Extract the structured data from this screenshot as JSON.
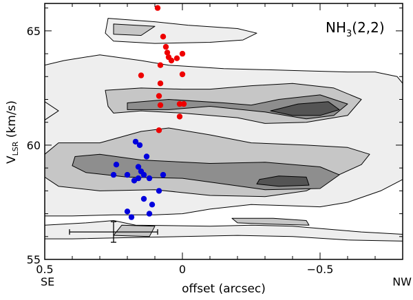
{
  "chart_data": {
    "type": "scatter",
    "title": "",
    "annotation": {
      "main": "NH",
      "sub": "3",
      "tail": "(2,2)"
    },
    "xlabel": "offset (arcsec)",
    "ylabel": {
      "main": "V",
      "sub": "LSR",
      "tail": " (km/s)"
    },
    "x_direction_labels": {
      "left": "SE",
      "right": "NW"
    },
    "xlim": [
      0.5,
      -0.8
    ],
    "ylim": [
      55,
      66.2
    ],
    "x_ticks": [
      0.5,
      0,
      -0.5
    ],
    "x_tick_labels": [
      "0.5",
      "0",
      "−0.5"
    ],
    "y_ticks": [
      55,
      60,
      65
    ],
    "y_tick_labels": [
      "55",
      "60",
      "65"
    ],
    "grid": false,
    "colors": {
      "red_series": "#ee0000",
      "blue_series": "#0000dd",
      "contour_levels": [
        "#eeeeee",
        "#c6c6c6",
        "#8e8e8e",
        "#545454"
      ],
      "contour_line": "#000000"
    },
    "series": [
      {
        "points": [
          [
            0.09,
            66.0
          ],
          [
            0.07,
            64.75
          ],
          [
            0.06,
            64.3
          ],
          [
            0.055,
            64.05
          ],
          [
            0.05,
            63.85
          ],
          [
            0.0,
            64.0
          ],
          [
            0.04,
            63.7
          ],
          [
            0.02,
            63.8
          ],
          [
            0.08,
            63.5
          ],
          [
            0.0,
            63.1
          ],
          [
            0.15,
            63.05
          ],
          [
            0.08,
            62.7
          ],
          [
            0.085,
            62.15
          ],
          [
            0.01,
            61.8
          ],
          [
            -0.005,
            61.8
          ],
          [
            0.08,
            61.75
          ],
          [
            0.01,
            61.25
          ],
          [
            0.085,
            60.65
          ]
        ]
      },
      {
        "points": [
          [
            0.17,
            60.15
          ],
          [
            0.155,
            60.0
          ],
          [
            0.13,
            59.5
          ],
          [
            0.24,
            59.15
          ],
          [
            0.16,
            59.05
          ],
          [
            0.25,
            58.7
          ],
          [
            0.2,
            58.7
          ],
          [
            0.15,
            58.85
          ],
          [
            0.07,
            58.7
          ],
          [
            0.14,
            58.7
          ],
          [
            0.12,
            58.55
          ],
          [
            0.175,
            58.45
          ],
          [
            0.16,
            58.55
          ],
          [
            0.085,
            58.0
          ],
          [
            0.14,
            57.65
          ],
          [
            0.11,
            57.4
          ],
          [
            0.2,
            57.1
          ],
          [
            0.12,
            57.0
          ],
          [
            0.185,
            56.85
          ]
        ]
      }
    ],
    "error_bar": {
      "x": 0.25,
      "y": 56.2,
      "x_err": 0.16,
      "y_err_low": 0.45,
      "y_err_high": 0.45
    },
    "contour_levels": [
      {
        "level": 1,
        "polygons": [
          [
            [
              0.5,
              63.5
            ],
            [
              0.43,
              63.7
            ],
            [
              0.3,
              63.95
            ],
            [
              0.15,
              63.7
            ],
            [
              0.05,
              63.5
            ],
            [
              -0.15,
              63.35
            ],
            [
              -0.3,
              63.3
            ],
            [
              -0.45,
              63.25
            ],
            [
              -0.6,
              63.2
            ],
            [
              -0.7,
              63.2
            ],
            [
              -0.78,
              63.0
            ],
            [
              -0.8,
              62.7
            ],
            [
              -0.8,
              58.5
            ],
            [
              -0.72,
              58.0
            ],
            [
              -0.6,
              57.5
            ],
            [
              -0.5,
              57.3
            ],
            [
              -0.38,
              57.35
            ],
            [
              -0.25,
              57.4
            ],
            [
              -0.1,
              57.2
            ],
            [
              0.0,
              57.0
            ],
            [
              0.1,
              56.95
            ],
            [
              0.25,
              56.95
            ],
            [
              0.4,
              56.9
            ],
            [
              0.5,
              56.9
            ]
          ],
          [
            [
              0.25,
              56.7
            ],
            [
              0.17,
              56.5
            ],
            [
              -0.1,
              56.45
            ],
            [
              -0.25,
              56.5
            ],
            [
              -0.4,
              56.45
            ],
            [
              -0.55,
              56.3
            ],
            [
              -0.65,
              56.2
            ],
            [
              -0.8,
              56.1
            ],
            [
              -0.8,
              55.8
            ],
            [
              -0.6,
              55.85
            ],
            [
              -0.4,
              56.0
            ],
            [
              -0.2,
              56.05
            ],
            [
              0.0,
              56.0
            ],
            [
              0.2,
              55.95
            ],
            [
              0.4,
              55.9
            ],
            [
              0.5,
              55.9
            ],
            [
              0.5,
              56.5
            ],
            [
              0.35,
              56.6
            ]
          ],
          [
            [
              0.5,
              61.9
            ],
            [
              0.45,
              61.5
            ],
            [
              0.5,
              61.1
            ]
          ],
          [
            [
              0.27,
              65.55
            ],
            [
              0.1,
              65.4
            ],
            [
              -0.02,
              65.25
            ],
            [
              -0.2,
              65.1
            ],
            [
              -0.27,
              64.9
            ],
            [
              -0.22,
              64.6
            ],
            [
              -0.1,
              64.5
            ],
            [
              0.1,
              64.45
            ],
            [
              0.25,
              64.55
            ],
            [
              0.28,
              64.9
            ]
          ]
        ]
      },
      {
        "level": 2,
        "polygons": [
          [
            [
              0.25,
              65.3
            ],
            [
              0.1,
              65.2
            ],
            [
              0.15,
              64.8
            ],
            [
              0.25,
              64.85
            ]
          ],
          [
            [
              0.45,
              60.1
            ],
            [
              0.3,
              60.1
            ],
            [
              0.15,
              60.6
            ],
            [
              0.05,
              60.75
            ],
            [
              -0.1,
              60.45
            ],
            [
              -0.25,
              60.1
            ],
            [
              -0.45,
              60.0
            ],
            [
              -0.6,
              59.9
            ],
            [
              -0.68,
              59.6
            ],
            [
              -0.65,
              59.15
            ],
            [
              -0.55,
              58.6
            ],
            [
              -0.45,
              58.0
            ],
            [
              -0.3,
              57.75
            ],
            [
              -0.1,
              57.8
            ],
            [
              0.1,
              58.05
            ],
            [
              0.3,
              58.0
            ],
            [
              0.45,
              58.2
            ],
            [
              0.5,
              58.6
            ],
            [
              0.5,
              59.6
            ]
          ],
          [
            [
              0.28,
              62.4
            ],
            [
              0.15,
              62.5
            ],
            [
              0.0,
              62.45
            ],
            [
              -0.1,
              62.45
            ],
            [
              -0.25,
              62.6
            ],
            [
              -0.4,
              62.7
            ],
            [
              -0.55,
              62.5
            ],
            [
              -0.65,
              62.0
            ],
            [
              -0.6,
              61.3
            ],
            [
              -0.45,
              61.0
            ],
            [
              -0.3,
              60.95
            ],
            [
              -0.2,
              61.2
            ],
            [
              0.0,
              61.4
            ],
            [
              0.15,
              61.5
            ],
            [
              0.25,
              61.4
            ],
            [
              0.27,
              61.7
            ]
          ],
          [
            [
              -0.18,
              56.8
            ],
            [
              -0.33,
              56.8
            ],
            [
              -0.45,
              56.7
            ],
            [
              -0.46,
              56.5
            ],
            [
              -0.3,
              56.55
            ],
            [
              -0.2,
              56.6
            ]
          ],
          [
            [
              0.22,
              56.5
            ],
            [
              0.1,
              56.45
            ],
            [
              0.12,
              56.0
            ],
            [
              0.25,
              56.05
            ]
          ]
        ]
      },
      {
        "level": 3,
        "polygons": [
          [
            [
              0.39,
              59.5
            ],
            [
              0.3,
              59.6
            ],
            [
              0.15,
              59.35
            ],
            [
              -0.1,
              59.2
            ],
            [
              -0.3,
              59.25
            ],
            [
              -0.5,
              59.05
            ],
            [
              -0.57,
              58.7
            ],
            [
              -0.5,
              58.1
            ],
            [
              -0.3,
              58.05
            ],
            [
              -0.15,
              58.3
            ],
            [
              0.0,
              58.55
            ],
            [
              0.2,
              58.6
            ],
            [
              0.35,
              58.8
            ],
            [
              0.4,
              59.1
            ]
          ],
          [
            [
              0.2,
              61.85
            ],
            [
              0.05,
              62.0
            ],
            [
              -0.15,
              61.85
            ],
            [
              -0.25,
              61.75
            ],
            [
              -0.35,
              62.0
            ],
            [
              -0.5,
              62.2
            ],
            [
              -0.6,
              61.8
            ],
            [
              -0.55,
              61.3
            ],
            [
              -0.45,
              61.15
            ],
            [
              -0.3,
              61.45
            ],
            [
              -0.1,
              61.7
            ],
            [
              0.05,
              61.55
            ],
            [
              0.2,
              61.55
            ]
          ]
        ]
      },
      {
        "level": 4,
        "polygons": [
          [
            [
              -0.28,
              58.5
            ],
            [
              -0.35,
              58.65
            ],
            [
              -0.45,
              58.6
            ],
            [
              -0.46,
              58.25
            ],
            [
              -0.35,
              58.2
            ],
            [
              -0.27,
              58.3
            ]
          ],
          [
            [
              -0.32,
              61.5
            ],
            [
              -0.42,
              61.8
            ],
            [
              -0.53,
              61.9
            ],
            [
              -0.57,
              61.55
            ],
            [
              -0.5,
              61.3
            ],
            [
              -0.4,
              61.3
            ]
          ]
        ]
      }
    ]
  }
}
